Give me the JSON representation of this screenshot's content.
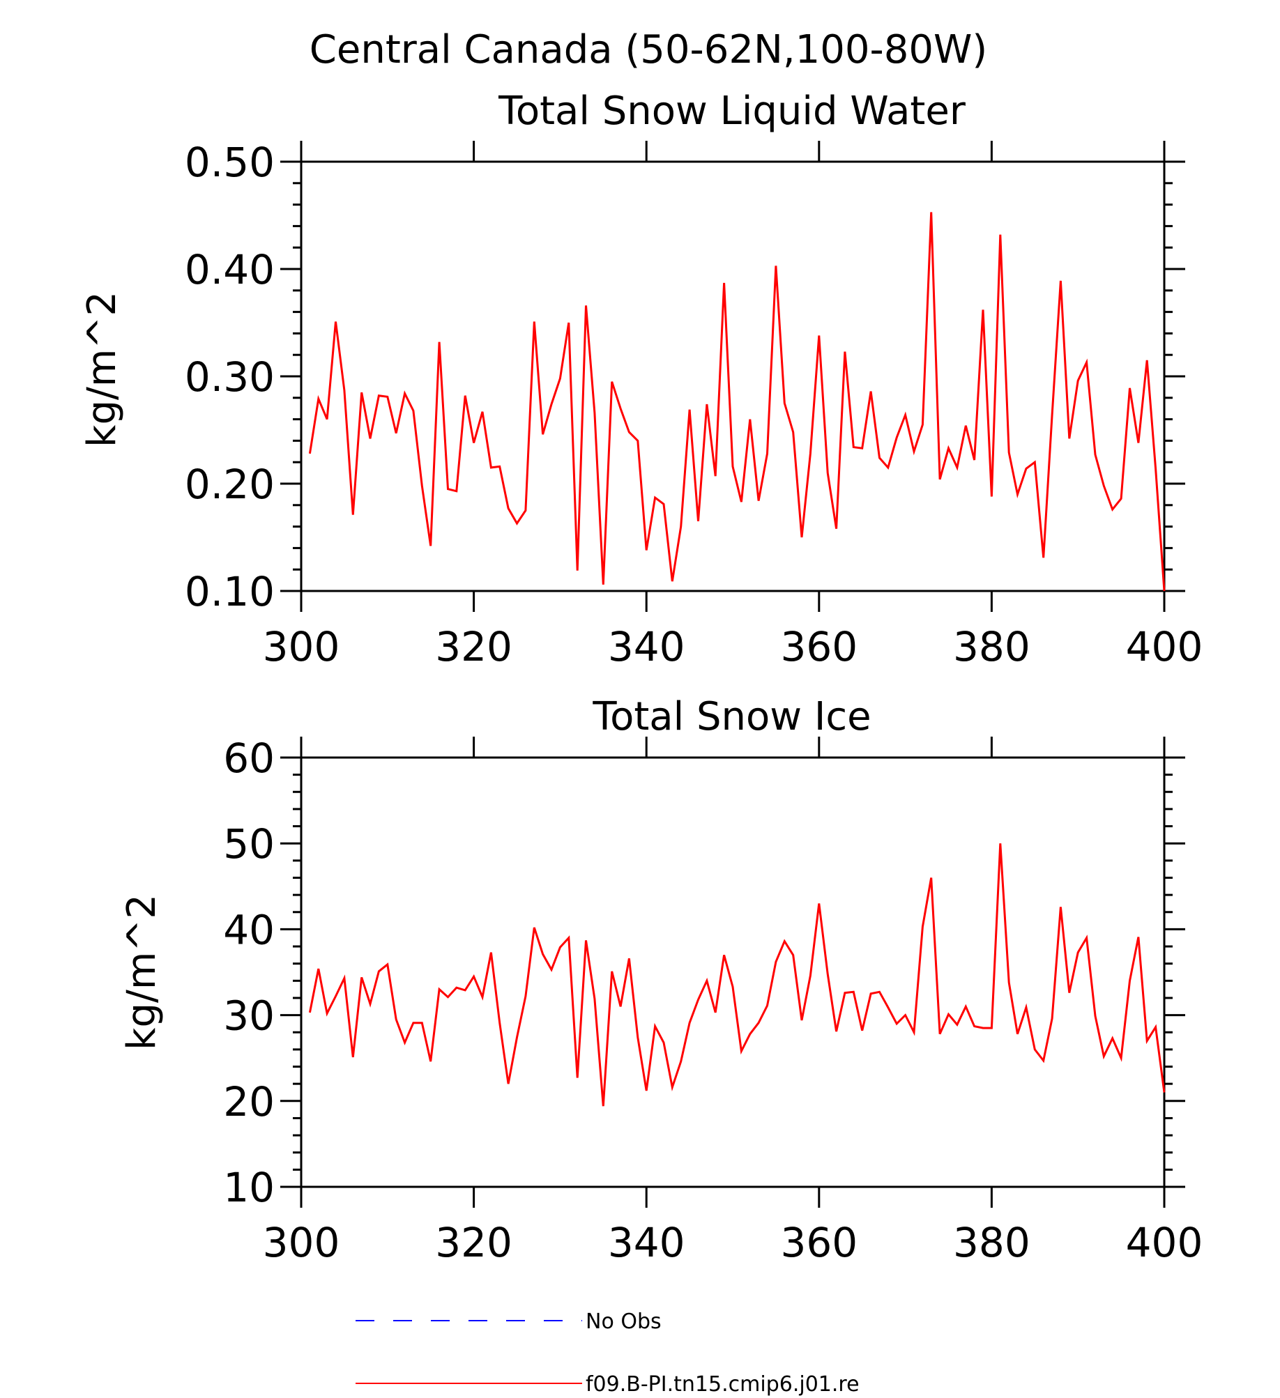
{
  "figure": {
    "title": "Central Canada (50-62N,100-80W)",
    "legend": [
      {
        "label": "No Obs",
        "color": "#0000ff",
        "style": "dashed"
      },
      {
        "label": "f09.B-PI.tn15.cmip6.j01.re",
        "color": "#ff0000",
        "style": "solid"
      }
    ]
  },
  "chart_data": [
    {
      "type": "line",
      "title": "Total Snow Liquid Water",
      "xlabel": "",
      "ylabel": "kg/m^2",
      "xlim": [
        300,
        400
      ],
      "ylim": [
        0.1,
        0.5
      ],
      "xticks": [
        300,
        320,
        340,
        360,
        380,
        400
      ],
      "yticks": [
        0.1,
        0.2,
        0.3,
        0.4,
        0.5
      ],
      "ytick_labels": [
        "0.10",
        "0.20",
        "0.30",
        "0.40",
        "0.50"
      ],
      "grid": false,
      "series": [
        {
          "name": "f09.B-PI.tn15.cmip6.j01.re",
          "color": "#ff0000",
          "x": [
            301,
            302,
            303,
            304,
            305,
            306,
            307,
            308,
            309,
            310,
            311,
            312,
            313,
            314,
            315,
            316,
            317,
            318,
            319,
            320,
            321,
            322,
            323,
            324,
            325,
            326,
            327,
            328,
            329,
            330,
            331,
            332,
            333,
            334,
            335,
            336,
            337,
            338,
            339,
            340,
            341,
            342,
            343,
            344,
            345,
            346,
            347,
            348,
            349,
            350,
            351,
            352,
            353,
            354,
            355,
            356,
            357,
            358,
            359,
            360,
            361,
            362,
            363,
            364,
            365,
            366,
            367,
            368,
            369,
            370,
            371,
            372,
            373,
            374,
            375,
            376,
            377,
            378,
            379,
            380,
            381,
            382,
            383,
            384,
            385,
            386,
            387,
            388,
            389,
            390,
            391,
            392,
            393,
            394,
            395,
            396,
            397,
            398,
            399,
            400
          ],
          "y": [
            0.228,
            0.279,
            0.26,
            0.351,
            0.287,
            0.171,
            0.285,
            0.242,
            0.282,
            0.281,
            0.247,
            0.284,
            0.268,
            0.198,
            0.142,
            0.332,
            0.195,
            0.193,
            0.282,
            0.238,
            0.267,
            0.215,
            0.216,
            0.177,
            0.163,
            0.175,
            0.351,
            0.246,
            0.274,
            0.298,
            0.35,
            0.119,
            0.366,
            0.266,
            0.106,
            0.295,
            0.27,
            0.248,
            0.24,
            0.138,
            0.187,
            0.181,
            0.109,
            0.16,
            0.269,
            0.165,
            0.274,
            0.207,
            0.387,
            0.216,
            0.183,
            0.26,
            0.184,
            0.228,
            0.403,
            0.275,
            0.248,
            0.15,
            0.228,
            0.338,
            0.21,
            0.158,
            0.323,
            0.234,
            0.233,
            0.286,
            0.224,
            0.215,
            0.243,
            0.264,
            0.23,
            0.255,
            0.453,
            0.204,
            0.233,
            0.215,
            0.254,
            0.222,
            0.362,
            0.188,
            0.432,
            0.229,
            0.19,
            0.214,
            0.22,
            0.131,
            0.264,
            0.389,
            0.242,
            0.296,
            0.313,
            0.227,
            0.198,
            0.176,
            0.186,
            0.289,
            0.238,
            0.315,
            0.214,
            0.1
          ]
        }
      ]
    },
    {
      "type": "line",
      "title": "Total Snow Ice",
      "xlabel": "",
      "ylabel": "kg/m^2",
      "xlim": [
        300,
        400
      ],
      "ylim": [
        10,
        60
      ],
      "xticks": [
        300,
        320,
        340,
        360,
        380,
        400
      ],
      "yticks": [
        10,
        20,
        30,
        40,
        50,
        60
      ],
      "ytick_labels": [
        "10",
        "20",
        "30",
        "40",
        "50",
        "60"
      ],
      "grid": false,
      "series": [
        {
          "name": "f09.B-PI.tn15.cmip6.j01.re",
          "color": "#ff0000",
          "x": [
            301,
            302,
            303,
            304,
            305,
            306,
            307,
            308,
            309,
            310,
            311,
            312,
            313,
            314,
            315,
            316,
            317,
            318,
            319,
            320,
            321,
            322,
            323,
            324,
            325,
            326,
            327,
            328,
            329,
            330,
            331,
            332,
            333,
            334,
            335,
            336,
            337,
            338,
            339,
            340,
            341,
            342,
            343,
            344,
            345,
            346,
            347,
            348,
            349,
            350,
            351,
            352,
            353,
            354,
            355,
            356,
            357,
            358,
            359,
            360,
            361,
            362,
            363,
            364,
            365,
            366,
            367,
            368,
            369,
            370,
            371,
            372,
            373,
            374,
            375,
            376,
            377,
            378,
            379,
            380,
            381,
            382,
            383,
            384,
            385,
            386,
            387,
            388,
            389,
            390,
            391,
            392,
            393,
            394,
            395,
            396,
            397,
            398,
            399,
            400
          ],
          "y": [
            30.3,
            35.4,
            30.2,
            32.2,
            34.3,
            25.1,
            34.4,
            31.3,
            35.1,
            35.9,
            29.5,
            26.8,
            29.1,
            29.1,
            24.6,
            33.0,
            32.1,
            33.2,
            32.9,
            34.5,
            32.1,
            37.3,
            29.1,
            22.0,
            27.4,
            32.2,
            40.2,
            37.1,
            35.3,
            37.9,
            39.0,
            22.7,
            38.7,
            31.9,
            19.4,
            35.1,
            31.0,
            36.6,
            27.4,
            21.2,
            28.7,
            26.8,
            21.6,
            24.6,
            29.1,
            31.8,
            34.0,
            30.3,
            37.0,
            33.3,
            25.8,
            27.8,
            29.1,
            31.1,
            36.2,
            38.6,
            37.0,
            29.4,
            34.6,
            43.0,
            34.8,
            28.1,
            32.6,
            32.7,
            28.2,
            32.5,
            32.7,
            30.9,
            29.0,
            30.0,
            28.0,
            40.3,
            46.0,
            27.8,
            30.1,
            28.9,
            31.0,
            28.7,
            28.5,
            28.5,
            50.0,
            33.8,
            27.8,
            30.9,
            26.0,
            24.7,
            29.6,
            42.6,
            32.6,
            37.3,
            39.0,
            29.9,
            25.2,
            27.3,
            25.0,
            34.0,
            39.1,
            27.0,
            28.6,
            21.0
          ]
        }
      ]
    }
  ]
}
